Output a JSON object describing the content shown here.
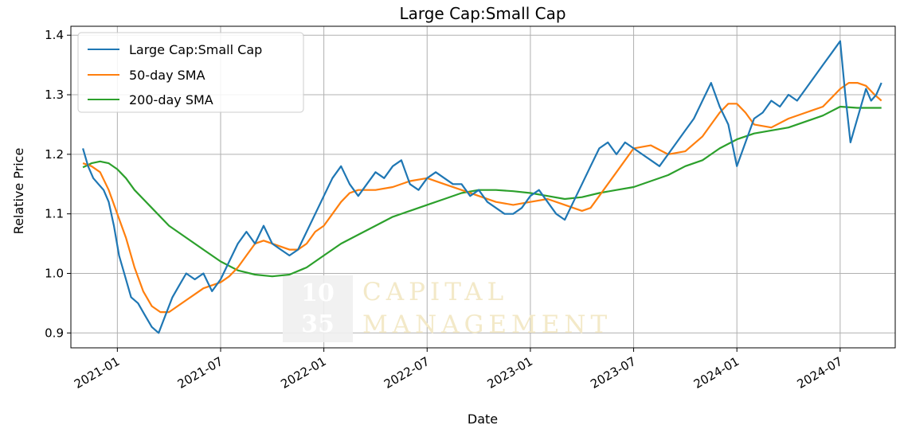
{
  "chart_data": {
    "type": "line",
    "title": "Large Cap:Small Cap",
    "xlabel": "Date",
    "ylabel": "Relative Price",
    "x_range": [
      "2020-10-20",
      "2024-10-05"
    ],
    "xlim_months": [
      -2.7,
      45.2
    ],
    "ylim": [
      0.875,
      1.415
    ],
    "x_ticks": [
      {
        "label": "2021-01",
        "m": 0
      },
      {
        "label": "2021-07",
        "m": 6
      },
      {
        "label": "2022-01",
        "m": 12
      },
      {
        "label": "2022-07",
        "m": 18
      },
      {
        "label": "2023-01",
        "m": 24
      },
      {
        "label": "2023-07",
        "m": 30
      },
      {
        "label": "2024-01",
        "m": 36
      },
      {
        "label": "2024-07",
        "m": 42
      }
    ],
    "y_ticks": [
      {
        "label": "0.9",
        "v": 0.9
      },
      {
        "label": "1.0",
        "v": 1.0
      },
      {
        "label": "1.1",
        "v": 1.1
      },
      {
        "label": "1.2",
        "v": 1.2
      },
      {
        "label": "1.3",
        "v": 1.3
      },
      {
        "label": "1.4",
        "v": 1.4
      }
    ],
    "grid": true,
    "legend_position": "top-left",
    "series": [
      {
        "name": "Large Cap:Small Cap",
        "color": "#1f77b4",
        "x_months": [
          -2.0,
          -1.7,
          -1.4,
          -1.1,
          -0.8,
          -0.5,
          -0.2,
          0.1,
          0.4,
          0.8,
          1.2,
          1.6,
          2.0,
          2.4,
          2.8,
          3.2,
          3.6,
          4.0,
          4.5,
          5.0,
          5.5,
          6.0,
          6.5,
          7.0,
          7.5,
          8.0,
          8.5,
          9.0,
          9.5,
          10.0,
          10.5,
          11.0,
          11.5,
          12.0,
          12.5,
          13.0,
          13.5,
          14.0,
          14.5,
          15.0,
          15.5,
          16.0,
          16.5,
          17.0,
          17.5,
          18.0,
          18.5,
          19.0,
          19.5,
          20.0,
          20.5,
          21.0,
          21.5,
          22.0,
          22.5,
          23.0,
          23.5,
          24.0,
          24.5,
          25.0,
          25.5,
          26.0,
          26.5,
          27.0,
          27.5,
          28.0,
          28.5,
          29.0,
          29.5,
          30.0,
          30.5,
          31.0,
          31.5,
          32.0,
          32.5,
          33.0,
          33.5,
          34.0,
          34.5,
          35.0,
          35.5,
          36.0,
          36.5,
          37.0,
          37.5,
          38.0,
          38.5,
          39.0,
          39.5,
          40.0,
          40.5,
          41.0,
          41.5,
          42.0,
          42.3,
          42.6,
          42.9,
          43.2,
          43.5,
          43.8,
          44.1,
          44.4
        ],
        "values": [
          1.21,
          1.18,
          1.16,
          1.15,
          1.14,
          1.12,
          1.08,
          1.03,
          1.0,
          0.96,
          0.95,
          0.93,
          0.91,
          0.9,
          0.93,
          0.96,
          0.98,
          1.0,
          0.99,
          1.0,
          0.97,
          0.99,
          1.02,
          1.05,
          1.07,
          1.05,
          1.08,
          1.05,
          1.04,
          1.03,
          1.04,
          1.07,
          1.1,
          1.13,
          1.16,
          1.18,
          1.15,
          1.13,
          1.15,
          1.17,
          1.16,
          1.18,
          1.19,
          1.15,
          1.14,
          1.16,
          1.17,
          1.16,
          1.15,
          1.15,
          1.13,
          1.14,
          1.12,
          1.11,
          1.1,
          1.1,
          1.11,
          1.13,
          1.14,
          1.12,
          1.1,
          1.09,
          1.12,
          1.15,
          1.18,
          1.21,
          1.22,
          1.2,
          1.22,
          1.21,
          1.2,
          1.19,
          1.18,
          1.2,
          1.22,
          1.24,
          1.26,
          1.29,
          1.32,
          1.28,
          1.25,
          1.18,
          1.22,
          1.26,
          1.27,
          1.29,
          1.28,
          1.3,
          1.29,
          1.31,
          1.33,
          1.35,
          1.37,
          1.39,
          1.3,
          1.22,
          1.25,
          1.28,
          1.31,
          1.29,
          1.3,
          1.32
        ],
        "data_points": 102
      },
      {
        "name": "50-day SMA",
        "color": "#ff7f0e",
        "x_months": [
          -2.0,
          -1.5,
          -1.0,
          -0.5,
          0.0,
          0.5,
          1.0,
          1.5,
          2.0,
          2.5,
          3.0,
          3.5,
          4.0,
          4.5,
          5.0,
          5.5,
          6.0,
          6.5,
          7.0,
          7.5,
          8.0,
          8.5,
          9.0,
          9.5,
          10.0,
          10.5,
          11.0,
          11.5,
          12.0,
          12.5,
          13.0,
          13.5,
          14.0,
          15.0,
          16.0,
          17.0,
          18.0,
          19.0,
          20.0,
          21.0,
          22.0,
          23.0,
          24.0,
          25.0,
          26.0,
          27.0,
          27.5,
          28.0,
          29.0,
          30.0,
          31.0,
          32.0,
          33.0,
          34.0,
          34.5,
          35.0,
          35.5,
          36.0,
          36.5,
          37.0,
          38.0,
          39.0,
          40.0,
          41.0,
          41.5,
          42.0,
          42.5,
          43.0,
          43.5,
          44.0,
          44.4
        ],
        "values": [
          1.185,
          1.18,
          1.17,
          1.14,
          1.1,
          1.06,
          1.01,
          0.97,
          0.945,
          0.935,
          0.935,
          0.945,
          0.955,
          0.965,
          0.975,
          0.98,
          0.985,
          0.995,
          1.01,
          1.03,
          1.05,
          1.055,
          1.05,
          1.045,
          1.04,
          1.04,
          1.05,
          1.07,
          1.08,
          1.1,
          1.12,
          1.135,
          1.14,
          1.14,
          1.145,
          1.155,
          1.16,
          1.15,
          1.14,
          1.13,
          1.12,
          1.115,
          1.12,
          1.125,
          1.115,
          1.105,
          1.11,
          1.13,
          1.17,
          1.21,
          1.215,
          1.2,
          1.205,
          1.23,
          1.25,
          1.27,
          1.285,
          1.285,
          1.27,
          1.25,
          1.245,
          1.26,
          1.27,
          1.28,
          1.295,
          1.31,
          1.32,
          1.32,
          1.315,
          1.3,
          1.29
        ],
        "data_points": 71
      },
      {
        "name": "200-day SMA",
        "color": "#2ca02c",
        "x_months": [
          -2.0,
          -1.5,
          -1.0,
          -0.5,
          0.0,
          0.5,
          1.0,
          2.0,
          3.0,
          4.0,
          5.0,
          6.0,
          7.0,
          8.0,
          9.0,
          10.0,
          11.0,
          12.0,
          13.0,
          14.0,
          15.0,
          16.0,
          17.0,
          18.0,
          19.0,
          20.0,
          21.0,
          22.0,
          23.0,
          24.0,
          25.0,
          26.0,
          27.0,
          28.0,
          29.0,
          30.0,
          31.0,
          32.0,
          33.0,
          34.0,
          35.0,
          36.0,
          37.0,
          38.0,
          39.0,
          40.0,
          41.0,
          42.0,
          43.0,
          44.0,
          44.4
        ],
        "values": [
          1.178,
          1.185,
          1.188,
          1.185,
          1.175,
          1.16,
          1.14,
          1.11,
          1.08,
          1.06,
          1.04,
          1.02,
          1.005,
          0.998,
          0.995,
          0.998,
          1.01,
          1.03,
          1.05,
          1.065,
          1.08,
          1.095,
          1.105,
          1.115,
          1.125,
          1.135,
          1.14,
          1.14,
          1.138,
          1.135,
          1.13,
          1.125,
          1.128,
          1.135,
          1.14,
          1.145,
          1.155,
          1.165,
          1.18,
          1.19,
          1.21,
          1.225,
          1.235,
          1.24,
          1.245,
          1.255,
          1.265,
          1.28,
          1.278,
          1.278,
          1.278
        ],
        "data_points": 51
      }
    ],
    "watermark": {
      "logo_numbers": [
        "10",
        "35"
      ],
      "text_lines": [
        "CAPITAL",
        "MANAGEMENT"
      ]
    }
  }
}
